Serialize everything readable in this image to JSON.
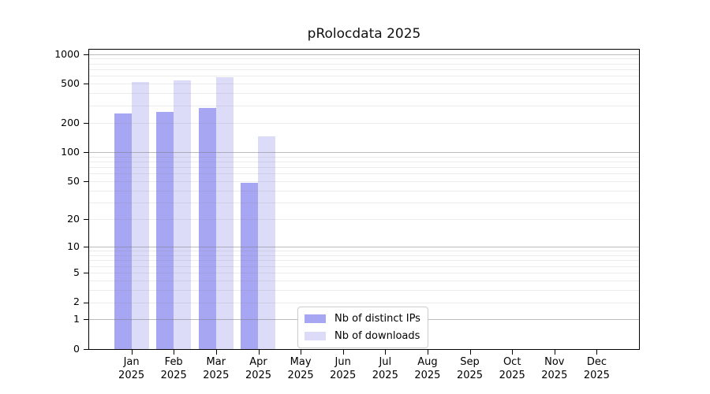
{
  "chart_data": {
    "type": "bar",
    "title": "pRolocdata 2025",
    "year_label": "2025",
    "categories": [
      "Jan",
      "Feb",
      "Mar",
      "Apr",
      "May",
      "Jun",
      "Jul",
      "Aug",
      "Sep",
      "Oct",
      "Nov",
      "Dec"
    ],
    "series": [
      {
        "name": "Nb of distinct IPs",
        "color": "#a6a6f2",
        "values": [
          250,
          258,
          280,
          48,
          null,
          null,
          null,
          null,
          null,
          null,
          null,
          null
        ]
      },
      {
        "name": "Nb of downloads",
        "color": "#dcdcf8",
        "values": [
          520,
          535,
          580,
          144,
          null,
          null,
          null,
          null,
          null,
          null,
          null,
          null
        ]
      }
    ],
    "y_ticks": [
      0,
      1,
      2,
      5,
      10,
      20,
      50,
      100,
      200,
      500,
      1000
    ],
    "y_scale": "log10(value+1)",
    "ylim": [
      0,
      1110
    ],
    "grid": {
      "major_values": [
        1,
        10,
        100,
        1000
      ],
      "minor_per_decade": [
        2,
        3,
        4,
        5,
        6,
        7,
        8,
        9
      ]
    },
    "legend_position": "inside-bottom-center",
    "xlabel": "",
    "ylabel": ""
  }
}
